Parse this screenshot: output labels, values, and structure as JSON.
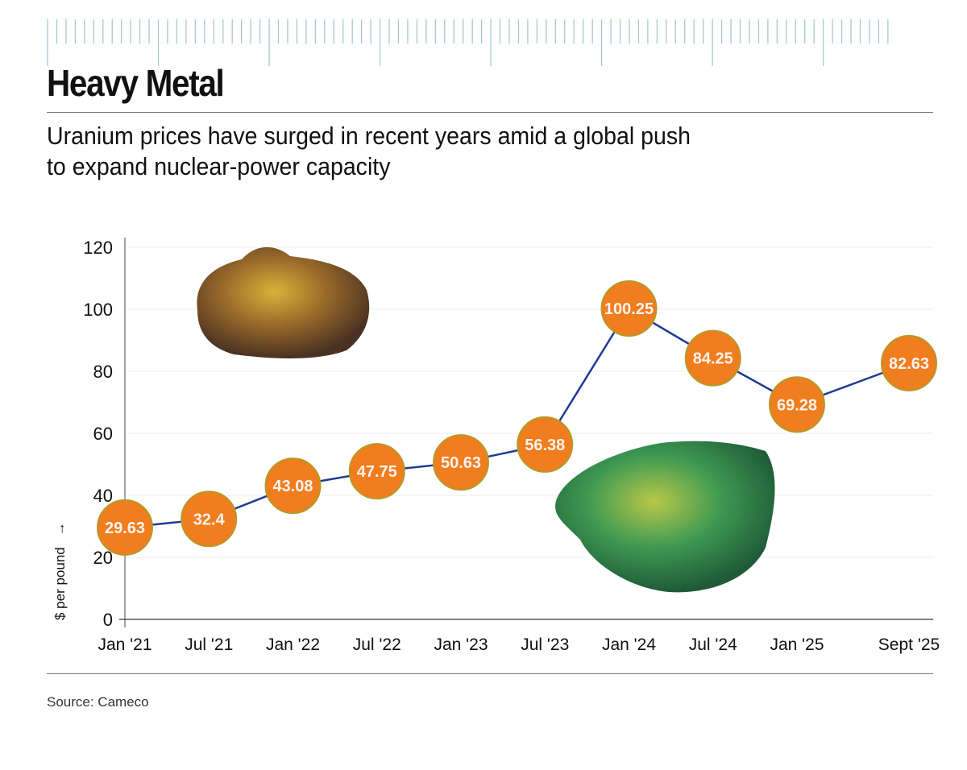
{
  "header": {
    "title": "Heavy Metal",
    "subtitle": "Uranium prices have surged in recent years amid a global push to expand nuclear-power capacity"
  },
  "footer": {
    "source": "Source: Cameco"
  },
  "colors": {
    "line": "#1f3a93",
    "marker": "#f07d1e",
    "marker_edge": "#b59a2a",
    "ruler": "#a8c8d4",
    "label_text": "#fff3f0"
  },
  "chart_data": {
    "type": "line",
    "title": "Heavy Metal",
    "subtitle": "Uranium prices have surged in recent years amid a global push to expand nuclear-power capacity",
    "xlabel": "",
    "ylabel": "$ per pound",
    "ylabel_arrow": "→",
    "ylim": [
      0,
      120
    ],
    "yticks": [
      0,
      20,
      40,
      60,
      80,
      100,
      120
    ],
    "grid": true,
    "categories": [
      "Jan '21",
      "Jul '21",
      "Jan '22",
      "Jul '22",
      "Jan '23",
      "Jul '23",
      "Jan '24",
      "Jul '24",
      "Jan '25",
      "Sept '25"
    ],
    "x_months": [
      0,
      6,
      12,
      18,
      24,
      30,
      36,
      42,
      48,
      56
    ],
    "values": [
      29.63,
      32.4,
      43.08,
      47.75,
      50.63,
      56.38,
      100.25,
      84.25,
      69.28,
      82.63
    ],
    "value_labels": [
      "29.63",
      "32.4",
      "43.08",
      "47.75",
      "50.63",
      "56.38",
      "100.25",
      "84.25",
      "69.28",
      "82.63"
    ],
    "images": [
      "uranium-ore-rock",
      "green-uranium-mineral"
    ]
  }
}
